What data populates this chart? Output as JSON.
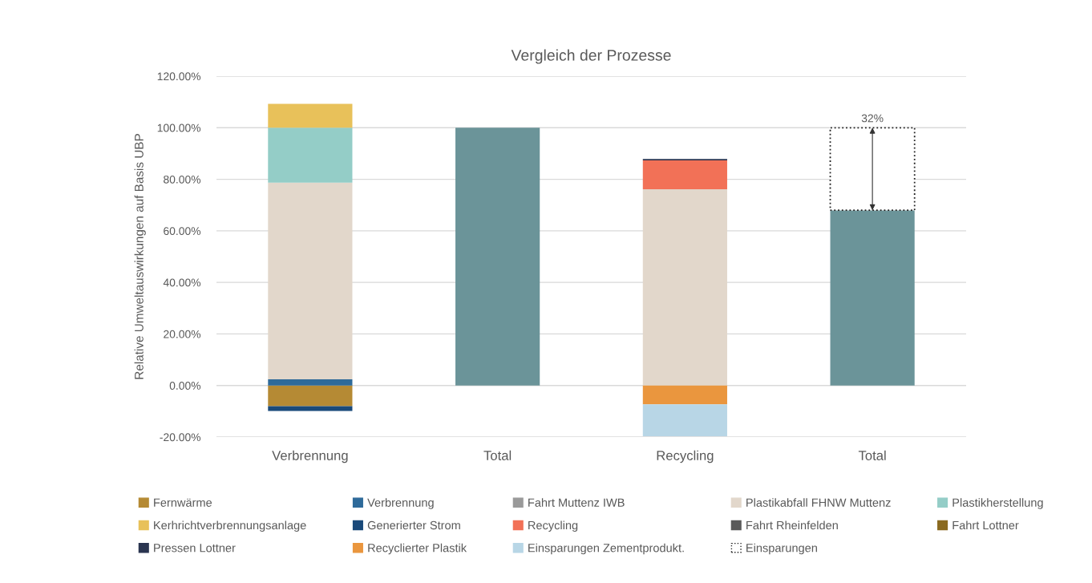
{
  "chart_data": {
    "type": "bar",
    "title": "Vergleich der Prozesse",
    "ylabel": "Relative Umweltauswirkungen auf Basis UBP",
    "stacked": true,
    "categories": [
      "Verbrennung",
      "Total",
      "Recycling",
      "Total"
    ],
    "series": [
      {
        "color": "#6b9499",
        "values": [
          null,
          100,
          null,
          68
        ]
      },
      {
        "name": "Fernwärme",
        "color": "#b58a34",
        "values": [
          -8.0,
          null,
          null,
          null
        ]
      },
      {
        "name": "Verbrennung",
        "color": "#2e6a9a",
        "values": [
          2.4,
          null,
          null,
          null
        ]
      },
      {
        "name": "Fahrt Muttenz IWB",
        "color": "#9a9a9a",
        "values": [
          null,
          null,
          null,
          null
        ]
      },
      {
        "name": "Plastikabfall FHNW Muttenz",
        "color": "#e2d7cb",
        "values": [
          76.3,
          null,
          76.1,
          null
        ]
      },
      {
        "name": "Plastikherstellung",
        "color": "#94cdc7",
        "values": [
          21.3,
          null,
          null,
          null
        ]
      },
      {
        "name": "Kerhrichtverbrennungsanlage",
        "color": "#e8c15a",
        "values": [
          9.3,
          null,
          null,
          null
        ]
      },
      {
        "name": "Generierter Strom",
        "color": "#1a4a7a",
        "values": [
          -1.9,
          null,
          null,
          null
        ]
      },
      {
        "name": "Recycling",
        "color": "#f27157",
        "values": [
          null,
          null,
          11.2,
          null
        ]
      },
      {
        "name": "Fahrt Rheinfelden",
        "color": "#5a5a5a",
        "values": [
          null,
          null,
          null,
          null
        ]
      },
      {
        "name": "Fahrt Lottner",
        "color": "#8a6a20",
        "values": [
          null,
          null,
          null,
          null
        ]
      },
      {
        "name": "Pressen Lottner",
        "color": "#2a3550",
        "values": [
          null,
          null,
          0.6,
          null
        ]
      },
      {
        "name": "Recyclierter Plastik",
        "color": "#ea963e",
        "values": [
          null,
          null,
          -7.3,
          null
        ]
      },
      {
        "name": "Einsparungen Zementprodukt.",
        "color": "#b8d6e6",
        "values": [
          null,
          null,
          -12.4,
          null
        ]
      },
      {
        "name": "Einsparungen",
        "color": "#ffffff",
        "line_style": "dotted",
        "values": [
          null,
          null,
          null,
          32
        ]
      }
    ],
    "ylim": [
      -20,
      120
    ],
    "yticks": [
      {
        "value": -20,
        "label": "-20.00%"
      },
      {
        "value": 0,
        "label": "0.00%"
      },
      {
        "value": 20,
        "label": "20.00%"
      },
      {
        "value": 40,
        "label": "40.00%"
      },
      {
        "value": 60,
        "label": "60.00%"
      },
      {
        "value": 80,
        "label": "80.00%"
      },
      {
        "value": 100,
        "label": "100.00%"
      },
      {
        "value": 120,
        "label": "120.00%"
      }
    ],
    "grid": "y",
    "legend": "bottom",
    "annotations": [
      {
        "text": "32%",
        "y": 100
      }
    ]
  }
}
